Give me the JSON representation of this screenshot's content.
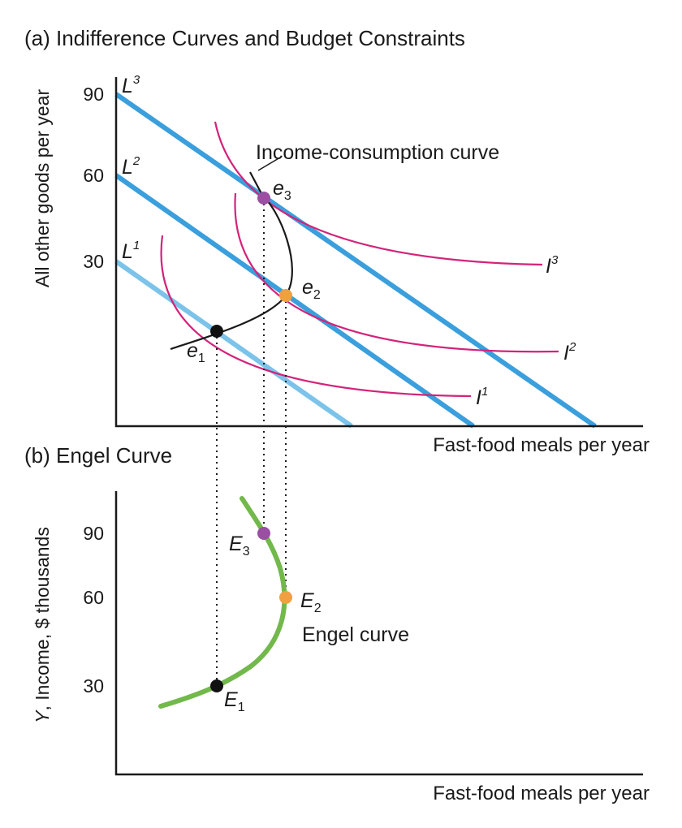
{
  "colors": {
    "budget_line": "#3a9fdc",
    "budget_line_light": "#7cc3ea",
    "indifference": "#d3237a",
    "engel": "#72b84b",
    "point_e1": "#111111",
    "point_e2": "#f0a040",
    "point_e3": "#9a4fa3",
    "axis": "#1a1a1a"
  },
  "chart_data": [
    {
      "panel": "a",
      "type": "line",
      "title": "(a) Indifference Curves and Budget Constraints",
      "xlabel": "Fast-food meals per year",
      "ylabel": "All other goods per year",
      "yticks": [
        "90",
        "60",
        "30"
      ],
      "ylim": [
        0,
        100
      ],
      "budget_lines": [
        {
          "name": "L",
          "sup": "3",
          "y_intercept": 90,
          "x_intercept": 84
        },
        {
          "name": "L",
          "sup": "2",
          "y_intercept": 60,
          "x_intercept": 63
        },
        {
          "name": "L",
          "sup": "1",
          "y_intercept": 30,
          "x_intercept": 42
        }
      ],
      "indifference_curves": [
        {
          "name": "I",
          "sup": "3"
        },
        {
          "name": "I",
          "sup": "2"
        },
        {
          "name": "I",
          "sup": "1"
        }
      ],
      "points": [
        {
          "name": "e",
          "sub": "1",
          "x": 18,
          "y": 16
        },
        {
          "name": "e",
          "sub": "2",
          "x": 30,
          "y": 22
        },
        {
          "name": "e",
          "sub": "3",
          "x": 26,
          "y": 52
        }
      ],
      "curve_label": "Income-consumption curve"
    },
    {
      "panel": "b",
      "type": "line",
      "title": "(b) Engel Curve",
      "xlabel": "Fast-food meals per year",
      "ylabel_italic": "Y",
      "ylabel_rest": ", Income, $ thousands",
      "yticks": [
        "90",
        "60",
        "30"
      ],
      "ylim": [
        0,
        110
      ],
      "points": [
        {
          "name": "E",
          "sub": "1",
          "x": 18,
          "y": 30
        },
        {
          "name": "E",
          "sub": "2",
          "x": 30,
          "y": 60
        },
        {
          "name": "E",
          "sub": "3",
          "x": 26,
          "y": 90
        }
      ],
      "curve_label": "Engel curve"
    }
  ]
}
